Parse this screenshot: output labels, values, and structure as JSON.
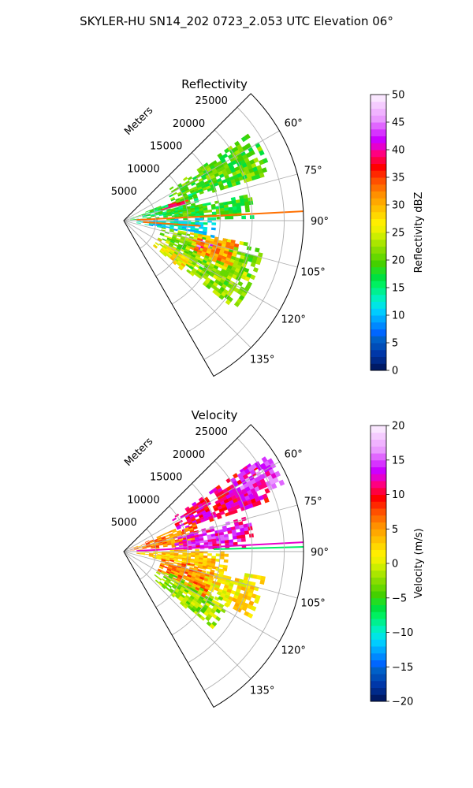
{
  "figure": {
    "title": "SKYLER-HU  SN14_202  0723_2.053 UTC Elevation 06°"
  },
  "chart_data": [
    {
      "type": "heatmap",
      "projection": "polar-sector",
      "title": "Reflectivity",
      "range_label": "Meters",
      "range_ticks": [
        5000,
        10000,
        15000,
        20000,
        25000
      ],
      "range_tick_labels": [
        "5000",
        "10000",
        "15000",
        "20000",
        "25000"
      ],
      "rmax": 28000,
      "azimuth_range_deg": [
        45,
        150
      ],
      "azimuth_ticks": [
        60,
        75,
        90,
        105,
        120,
        135
      ],
      "azimuth_tick_labels": [
        "60°",
        "75°",
        "90°",
        "105°",
        "120°",
        "135°"
      ],
      "grid": true,
      "colorbar": {
        "label": "Reflectivity dBZ",
        "vmin": 0,
        "vmax": 50,
        "ticks": [
          0,
          5,
          10,
          15,
          20,
          25,
          30,
          35,
          40,
          45,
          50
        ],
        "tick_labels": [
          "0",
          "5",
          "10",
          "15",
          "20",
          "25",
          "30",
          "35",
          "40",
          "45",
          "50"
        ],
        "colors": [
          "#001a66",
          "#002a8a",
          "#0037a8",
          "#004db8",
          "#0060c8",
          "#0066ff",
          "#0088ff",
          "#00aaff",
          "#00ccff",
          "#00e5e5",
          "#00f0c0",
          "#00f090",
          "#00f060",
          "#00e040",
          "#22dd22",
          "#44d000",
          "#66d800",
          "#88dd00",
          "#aae600",
          "#ccee00",
          "#eef000",
          "#ffee00",
          "#ffd800",
          "#ffc000",
          "#ffa800",
          "#ff9000",
          "#ff7000",
          "#ff5000",
          "#ff2800",
          "#ff0000",
          "#ff0040",
          "#ff0080",
          "#e600cc",
          "#cc00ff",
          "#d633ff",
          "#e066ff",
          "#ea99ff",
          "#f0b3ff",
          "#f5ccff",
          "#fae6ff"
        ]
      },
      "regions": [
        {
          "name": "northern band",
          "az": [
            55,
            72
          ],
          "r": [
            8000,
            24000
          ],
          "value": 20
        },
        {
          "name": "inner north-east",
          "az": [
            68,
            84
          ],
          "r": [
            1000,
            12000
          ],
          "value": 17
        },
        {
          "name": "east band",
          "az": [
            78,
            88
          ],
          "r": [
            6000,
            20000
          ],
          "value": 19
        },
        {
          "name": "central low echo",
          "az": [
            88,
            100
          ],
          "r": [
            2000,
            14000
          ],
          "value": 12
        },
        {
          "name": "southern region",
          "az": [
            100,
            128
          ],
          "r": [
            6000,
            22000
          ],
          "value": 22
        },
        {
          "name": "south-west edge",
          "az": [
            118,
            130
          ],
          "r": [
            6000,
            12000
          ],
          "value": 27
        },
        {
          "name": "core",
          "az": [
            103,
            110
          ],
          "r": [
            12000,
            16000
          ],
          "value": 42
        },
        {
          "name": "core halo",
          "az": [
            100,
            113
          ],
          "r": [
            10500,
            18000
          ],
          "value": 31
        },
        {
          "name": "near-range spike",
          "az": [
            70,
            74
          ],
          "r": [
            6000,
            10000
          ],
          "value": 36
        }
      ],
      "spikes": [
        {
          "az": 87,
          "r": [
            2000,
            28000
          ],
          "value": 33
        },
        {
          "az": 94,
          "r": [
            3000,
            12000
          ],
          "value": 33
        }
      ]
    },
    {
      "type": "heatmap",
      "projection": "polar-sector",
      "title": "Velocity",
      "range_label": "Meters",
      "range_ticks": [
        5000,
        10000,
        15000,
        20000,
        25000
      ],
      "range_tick_labels": [
        "5000",
        "10000",
        "15000",
        "20000",
        "25000"
      ],
      "rmax": 28000,
      "azimuth_range_deg": [
        45,
        150
      ],
      "azimuth_ticks": [
        60,
        75,
        90,
        105,
        120,
        135
      ],
      "azimuth_tick_labels": [
        "60°",
        "75°",
        "90°",
        "105°",
        "120°",
        "135°"
      ],
      "grid": true,
      "colorbar": {
        "label": "Velocity (m/s)",
        "vmin": -20,
        "vmax": 20,
        "ticks": [
          -20,
          -15,
          -10,
          -5,
          0,
          5,
          10,
          15,
          20
        ],
        "tick_labels": [
          "−20",
          "−15",
          "−10",
          "−5",
          "0",
          "5",
          "10",
          "15",
          "20"
        ],
        "colors": [
          "#001a66",
          "#002a8a",
          "#0037a8",
          "#004db8",
          "#0060c8",
          "#0066ff",
          "#0088ff",
          "#00aaff",
          "#00ccff",
          "#00e5e5",
          "#00f0c0",
          "#00f090",
          "#00f060",
          "#00e040",
          "#22dd22",
          "#44d000",
          "#66d800",
          "#88dd00",
          "#aae600",
          "#ccee00",
          "#eef000",
          "#ffee00",
          "#ffd800",
          "#ffc000",
          "#ffa800",
          "#ff9000",
          "#ff7000",
          "#ff5000",
          "#ff2800",
          "#ff0000",
          "#ff0040",
          "#ff0080",
          "#e600cc",
          "#cc00ff",
          "#d633ff",
          "#e066ff",
          "#ea99ff",
          "#f0b3ff",
          "#f5ccff",
          "#fae6ff"
        ]
      },
      "regions": [
        {
          "name": "northern band",
          "az": [
            55,
            70
          ],
          "r": [
            9000,
            24000
          ],
          "value": 11
        },
        {
          "name": "far north edge",
          "az": [
            56,
            66
          ],
          "r": [
            20000,
            27000
          ],
          "value": 14
        },
        {
          "name": "inner north-east",
          "az": [
            66,
            84
          ],
          "r": [
            1000,
            12000
          ],
          "value": 6
        },
        {
          "name": "east band",
          "az": [
            74,
            88
          ],
          "r": [
            8000,
            20000
          ],
          "value": 13
        },
        {
          "name": "central",
          "az": [
            88,
            102
          ],
          "r": [
            2000,
            16000
          ],
          "value": 3
        },
        {
          "name": "south-east",
          "az": [
            100,
            116
          ],
          "r": [
            12000,
            22000
          ],
          "value": 2
        },
        {
          "name": "southern",
          "az": [
            100,
            120
          ],
          "r": [
            6000,
            14000
          ],
          "value": 6
        },
        {
          "name": "south-west",
          "az": [
            115,
            132
          ],
          "r": [
            6000,
            18000
          ],
          "value": -2
        }
      ],
      "spikes": [
        {
          "az": 87,
          "r": [
            2000,
            28000
          ],
          "value": 12
        },
        {
          "az": 88.5,
          "r": [
            14000,
            28000
          ],
          "value": -8
        }
      ]
    }
  ]
}
